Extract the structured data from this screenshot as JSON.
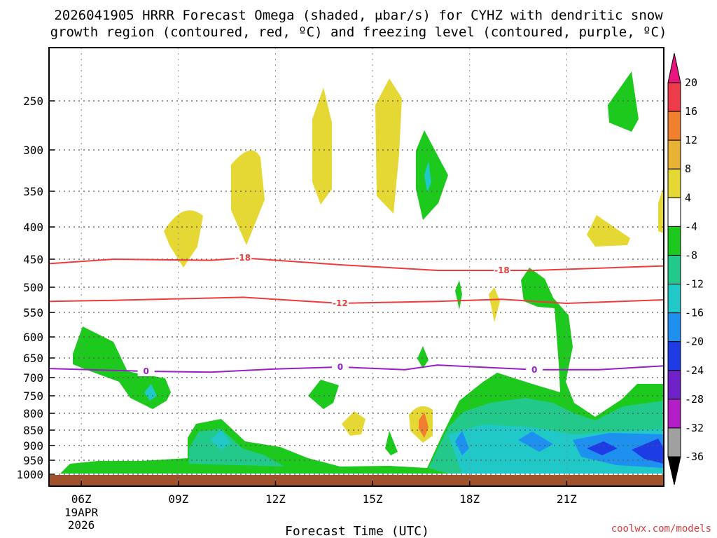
{
  "chart_data": {
    "type": "contour",
    "title_lines": [
      "2026041905 HRRR Forecast Omega (shaded, μbar/s) for CYHZ with dendritic snow",
      "growth region (contoured, red, ºC) and freezing level (contoured, purple, ºC)"
    ],
    "xlabel": "Forecast Time (UTC)",
    "date_labels": [
      "19APR",
      "2026"
    ],
    "x_range_hours": [
      5,
      24
    ],
    "x_ticks": [
      {
        "hour": 6,
        "label": "06Z"
      },
      {
        "hour": 9,
        "label": "09Z"
      },
      {
        "hour": 12,
        "label": "12Z"
      },
      {
        "hour": 15,
        "label": "15Z"
      },
      {
        "hour": 18,
        "label": "18Z"
      },
      {
        "hour": 21,
        "label": "21Z"
      }
    ],
    "y_ticks_hpa": [
      250,
      300,
      350,
      400,
      450,
      500,
      550,
      600,
      650,
      700,
      750,
      800,
      850,
      900,
      950,
      1000
    ],
    "y_tick_labels": [
      "250",
      "300",
      "350",
      "400",
      "450",
      "500",
      "550",
      "600",
      "650",
      "700",
      "750",
      "800",
      "850",
      "900",
      "950",
      "1000"
    ],
    "colorbar": {
      "labels": [
        "20",
        "16",
        "12",
        "8",
        "4",
        "-4",
        "-8",
        "-12",
        "-16",
        "-20",
        "-24",
        "-28",
        "-32",
        "-36"
      ],
      "colors": [
        "#ee3b4a",
        "#f07f2e",
        "#e8b234",
        "#e6d834",
        "#ffffff",
        "#1ec91e",
        "#22c98a",
        "#20c8c8",
        "#1e90f0",
        "#1e3ce6",
        "#6e22c8",
        "#b41ec8",
        "#a0a0a0"
      ],
      "top_arrow_color": "#e8157d",
      "bottom_arrow_color": "#000000"
    },
    "series": [
      {
        "name": "dendritic snow growth region",
        "color": "#ee3b3b",
        "contours": [
          {
            "label": "-18",
            "label_hour": 11.0,
            "points": [
              [
                5,
                458
              ],
              [
                7,
                450
              ],
              [
                10,
                452
              ],
              [
                11,
                448
              ],
              [
                14,
                460
              ],
              [
                17,
                470
              ],
              [
                20,
                470
              ],
              [
                24,
                462
              ]
            ]
          },
          {
            "label": "-12",
            "label_hour": 14.0,
            "points": [
              [
                5,
                528
              ],
              [
                7,
                526
              ],
              [
                11,
                520
              ],
              [
                14,
                532
              ],
              [
                17,
                528
              ],
              [
                19,
                524
              ],
              [
                21,
                532
              ],
              [
                24,
                525
              ]
            ]
          }
        ],
        "extra_labels": [
          {
            "label": "-18",
            "hour": 19.0,
            "p": 470
          }
        ]
      },
      {
        "name": "freezing level",
        "color": "#9a1ec8",
        "contours": [
          {
            "label": "0",
            "label_hour": 8.0,
            "points": [
              [
                5,
                677
              ],
              [
                8,
                684
              ],
              [
                10,
                686
              ],
              [
                12,
                678
              ],
              [
                14,
                673
              ],
              [
                16,
                680
              ],
              [
                17,
                668
              ],
              [
                20,
                680
              ],
              [
                22,
                680
              ],
              [
                24,
                670
              ]
            ]
          }
        ],
        "extra_labels": [
          {
            "label": "0",
            "hour": 14.0,
            "p": 673
          },
          {
            "label": "0",
            "hour": 20.0,
            "p": 680
          }
        ]
      }
    ],
    "credit": "coolwx.com/models"
  }
}
